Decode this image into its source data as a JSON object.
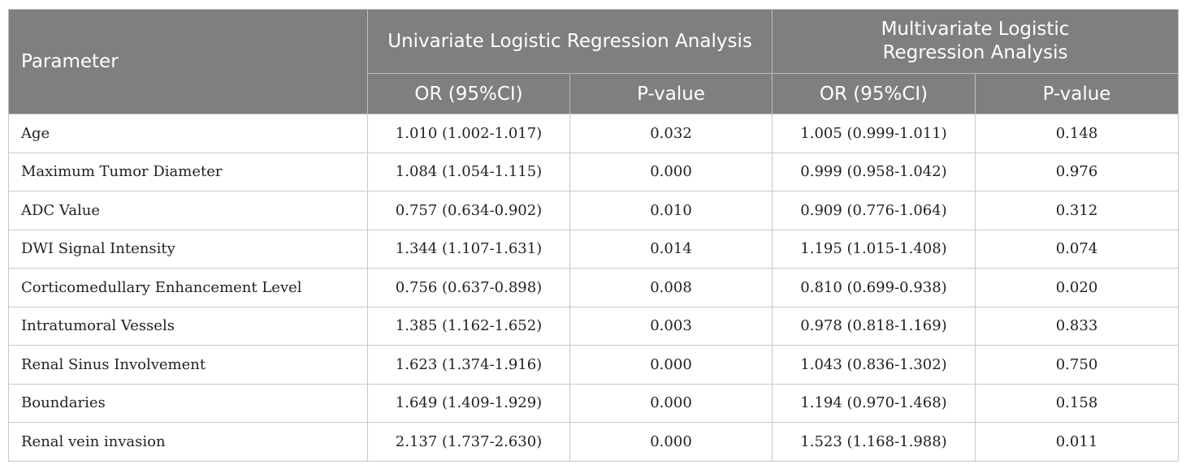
{
  "header": {
    "parameter": "Parameter",
    "univariate": "Univariate Logistic Regression Analysis",
    "multivariate_line1": "Multivariate Logistic",
    "multivariate_line2": "Regression Analysis",
    "or_ci": "OR (95%CI)",
    "p_value": "P-value"
  },
  "rows": [
    {
      "parameter": "Age",
      "uni_or": "1.010 (1.002-1.017)",
      "uni_p": "0.032",
      "multi_or": "1.005 (0.999-1.011)",
      "multi_p": "0.148"
    },
    {
      "parameter": "Maximum Tumor Diameter",
      "uni_or": "1.084 (1.054-1.115)",
      "uni_p": "0.000",
      "multi_or": "0.999 (0.958-1.042)",
      "multi_p": "0.976"
    },
    {
      "parameter": "ADC Value",
      "uni_or": "0.757 (0.634-0.902)",
      "uni_p": "0.010",
      "multi_or": "0.909 (0.776-1.064)",
      "multi_p": "0.312"
    },
    {
      "parameter": "DWI Signal Intensity",
      "uni_or": "1.344 (1.107-1.631)",
      "uni_p": "0.014",
      "multi_or": "1.195 (1.015-1.408)",
      "multi_p": "0.074"
    },
    {
      "parameter": "Corticomedullary Enhancement Level",
      "uni_or": "0.756 (0.637-0.898)",
      "uni_p": "0.008",
      "multi_or": "0.810 (0.699-0.938)",
      "multi_p": "0.020"
    },
    {
      "parameter": "Intratumoral Vessels",
      "uni_or": "1.385 (1.162-1.652)",
      "uni_p": "0.003",
      "multi_or": "0.978 (0.818-1.169)",
      "multi_p": "0.833"
    },
    {
      "parameter": "Renal Sinus Involvement",
      "uni_or": "1.623 (1.374-1.916)",
      "uni_p": "0.000",
      "multi_or": "1.043 (0.836-1.302)",
      "multi_p": "0.750"
    },
    {
      "parameter": "Boundaries",
      "uni_or": "1.649 (1.409-1.929)",
      "uni_p": "0.000",
      "multi_or": "1.194 (0.970-1.468)",
      "multi_p": "0.158"
    },
    {
      "parameter": "Renal vein invasion",
      "uni_or": "2.137 (1.737-2.630)",
      "uni_p": "0.000",
      "multi_or": "1.523 (1.168-1.988)",
      "multi_p": "0.011"
    }
  ],
  "colors": {
    "header_bg": "#7f7f7f",
    "header_text": "#ffffff",
    "border": "#c8c8c8"
  }
}
